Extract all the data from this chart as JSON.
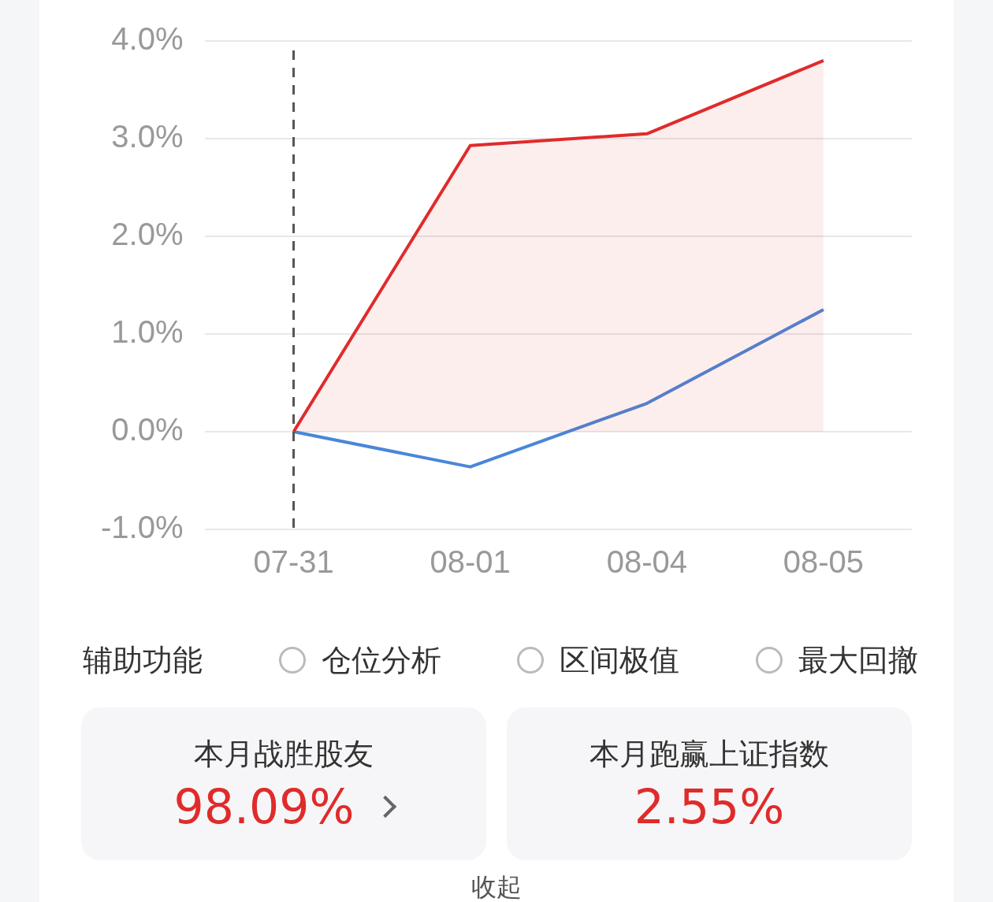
{
  "chart_data": {
    "type": "line",
    "categories": [
      "07-31",
      "08-01",
      "08-04",
      "08-05"
    ],
    "series": [
      {
        "type": "area",
        "color": "#e02b2b",
        "values": [
          0,
          2.93,
          3.05,
          3.8
        ]
      },
      {
        "type": "line",
        "color": "#4a86d8",
        "values": [
          0,
          -0.36,
          0.29,
          1.25
        ]
      }
    ],
    "ylim": [
      -1,
      4
    ],
    "yticks": [
      {
        "value": -1,
        "label": "-1.0%"
      },
      {
        "value": 0,
        "label": "0.0%"
      },
      {
        "value": 1,
        "label": "1.0%"
      },
      {
        "value": 2,
        "label": "2.0%"
      },
      {
        "value": 3,
        "label": "3.0%"
      },
      {
        "value": 4,
        "label": "4.0%"
      }
    ],
    "grid": "y",
    "legend": false,
    "ref_lines": [
      {
        "axis": "x",
        "value": "07-31",
        "color": "#555555",
        "line_style": "dashed"
      }
    ],
    "annotations": [
      "辅助功能",
      "仓位分析",
      "区间极值",
      "最大回撤",
      "本月战胜股友",
      "98.09%",
      "本月跑赢上证指数",
      "2.55%",
      "收起"
    ]
  }
}
